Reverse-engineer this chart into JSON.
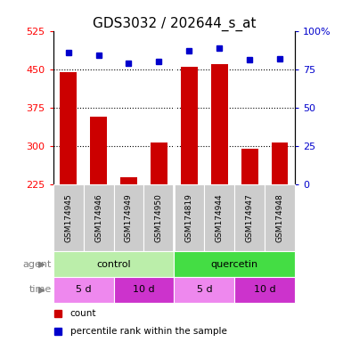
{
  "title": "GDS3032 / 202644_s_at",
  "samples": [
    "GSM174945",
    "GSM174946",
    "GSM174949",
    "GSM174950",
    "GSM174819",
    "GSM174944",
    "GSM174947",
    "GSM174948"
  ],
  "counts": [
    444,
    358,
    240,
    308,
    455,
    460,
    295,
    308
  ],
  "percentiles": [
    86,
    84,
    79,
    80,
    87,
    89,
    81,
    82
  ],
  "ylim_left": [
    225,
    525
  ],
  "ylim_right": [
    0,
    100
  ],
  "yticks_left": [
    225,
    300,
    375,
    450,
    525
  ],
  "yticks_right": [
    0,
    25,
    50,
    75,
    100
  ],
  "bar_color": "#cc0000",
  "dot_color": "#0000cc",
  "sample_bg_color": "#cccccc",
  "agent_colors": [
    "#bbeeaa",
    "#44dd44"
  ],
  "time_colors": [
    "#ee88ee",
    "#cc33cc"
  ],
  "agent_groups": [
    {
      "label": "control",
      "start": 0,
      "end": 4,
      "cidx": 0
    },
    {
      "label": "quercetin",
      "start": 4,
      "end": 8,
      "cidx": 1
    }
  ],
  "time_groups": [
    {
      "label": "5 d",
      "start": 0,
      "end": 2,
      "cidx": 0
    },
    {
      "label": "10 d",
      "start": 2,
      "end": 4,
      "cidx": 1
    },
    {
      "label": "5 d",
      "start": 4,
      "end": 6,
      "cidx": 0
    },
    {
      "label": "10 d",
      "start": 6,
      "end": 8,
      "cidx": 1
    }
  ],
  "grid_yticks": [
    300,
    375,
    450
  ],
  "title_fontsize": 11,
  "tick_fontsize": 8,
  "sample_fontsize": 6.5,
  "row_fontsize": 8,
  "legend_fontsize": 7.5
}
